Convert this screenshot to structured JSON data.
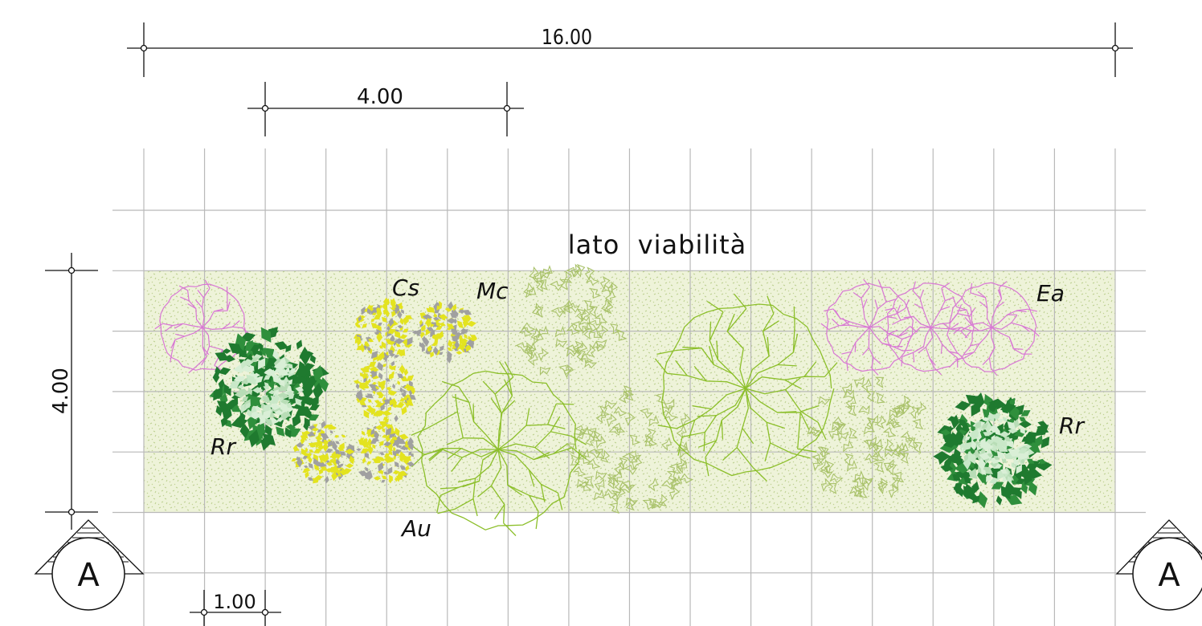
{
  "drawing": {
    "title": "lato  viabilità",
    "dimensions": {
      "overall_length": "16.00",
      "partial_length": "4.00",
      "bed_depth": "4.00",
      "grid_module": "1.00"
    },
    "section_markers": [
      "A",
      "A"
    ],
    "plants": [
      {
        "code": "Cs",
        "kind": "shrub-yellow"
      },
      {
        "code": "Mc",
        "kind": "shrub-outline"
      },
      {
        "code": "Ea",
        "kind": "shrub-pink"
      },
      {
        "code": "Rr",
        "kind": "tree-dark"
      },
      {
        "code": "Rr",
        "kind": "tree-dark"
      },
      {
        "code": "Au",
        "kind": "tree-outline"
      }
    ]
  },
  "colors": {
    "grid": "#b9b9b9",
    "ground": "#eef3d9",
    "ground_speckle": "#c9dba1",
    "pink_shrub": "#d877d4",
    "dark_green_tree": "#1f7a2f",
    "light_green_core": "#c9e8c8",
    "yellow_shrub": "#e3e31f",
    "grey_shrub": "#a0a0a0",
    "lime_outline": "#8cbf2a",
    "olive_leaf": "#a9c26a",
    "ink": "#111111"
  }
}
